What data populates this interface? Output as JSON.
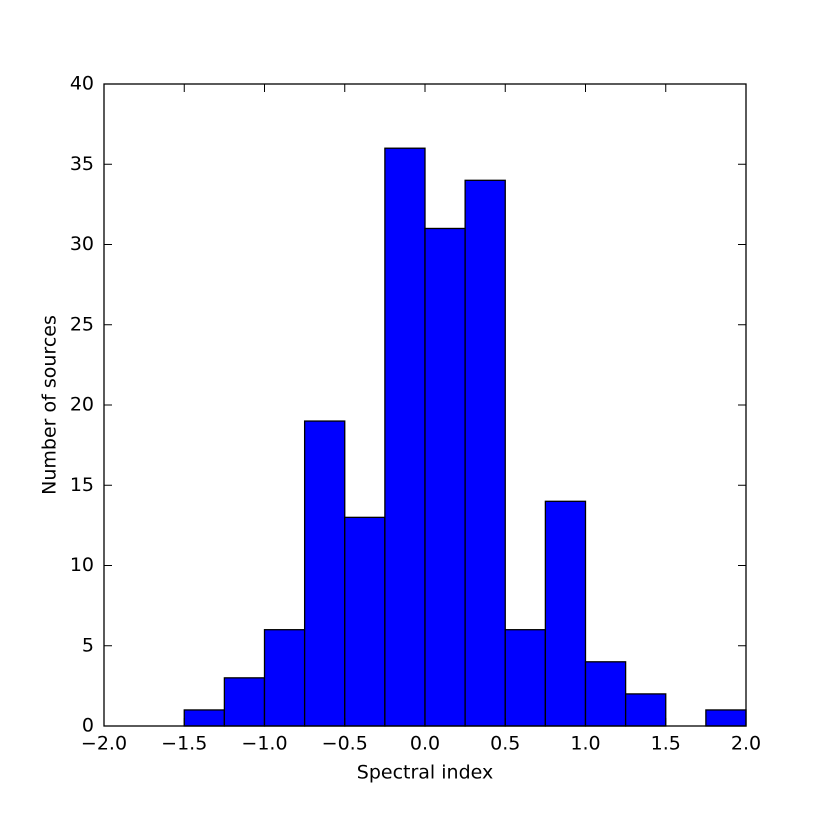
{
  "chart_data": {
    "type": "histogram",
    "xlabel": "Spectral index",
    "ylabel": "Number of sources",
    "bins": [
      -1.5,
      -1.25,
      -1.0,
      -0.75,
      -0.5,
      -0.25,
      0.0,
      0.25,
      0.5,
      0.75,
      1.0,
      1.25,
      1.5,
      1.75,
      2.0
    ],
    "values": [
      1,
      3,
      6,
      19,
      13,
      36,
      31,
      34,
      6,
      14,
      4,
      2,
      0,
      1
    ],
    "color": "#0000ff",
    "xlim": [
      -2.0,
      2.0
    ],
    "ylim": [
      0,
      40
    ],
    "xticks": [
      {
        "value": -2.0,
        "label": "−2.0"
      },
      {
        "value": -1.5,
        "label": "−1.5"
      },
      {
        "value": -1.0,
        "label": "−1.0"
      },
      {
        "value": -0.5,
        "label": "−0.5"
      },
      {
        "value": 0,
        "label": "0.0"
      },
      0.5,
      {
        "value": 1,
        "label": "1.0"
      },
      1.5,
      {
        "value": 2,
        "label": "2.0"
      }
    ],
    "yticks": [
      0,
      5,
      10,
      15,
      20,
      25,
      30,
      35,
      40
    ],
    "grid": false
  }
}
